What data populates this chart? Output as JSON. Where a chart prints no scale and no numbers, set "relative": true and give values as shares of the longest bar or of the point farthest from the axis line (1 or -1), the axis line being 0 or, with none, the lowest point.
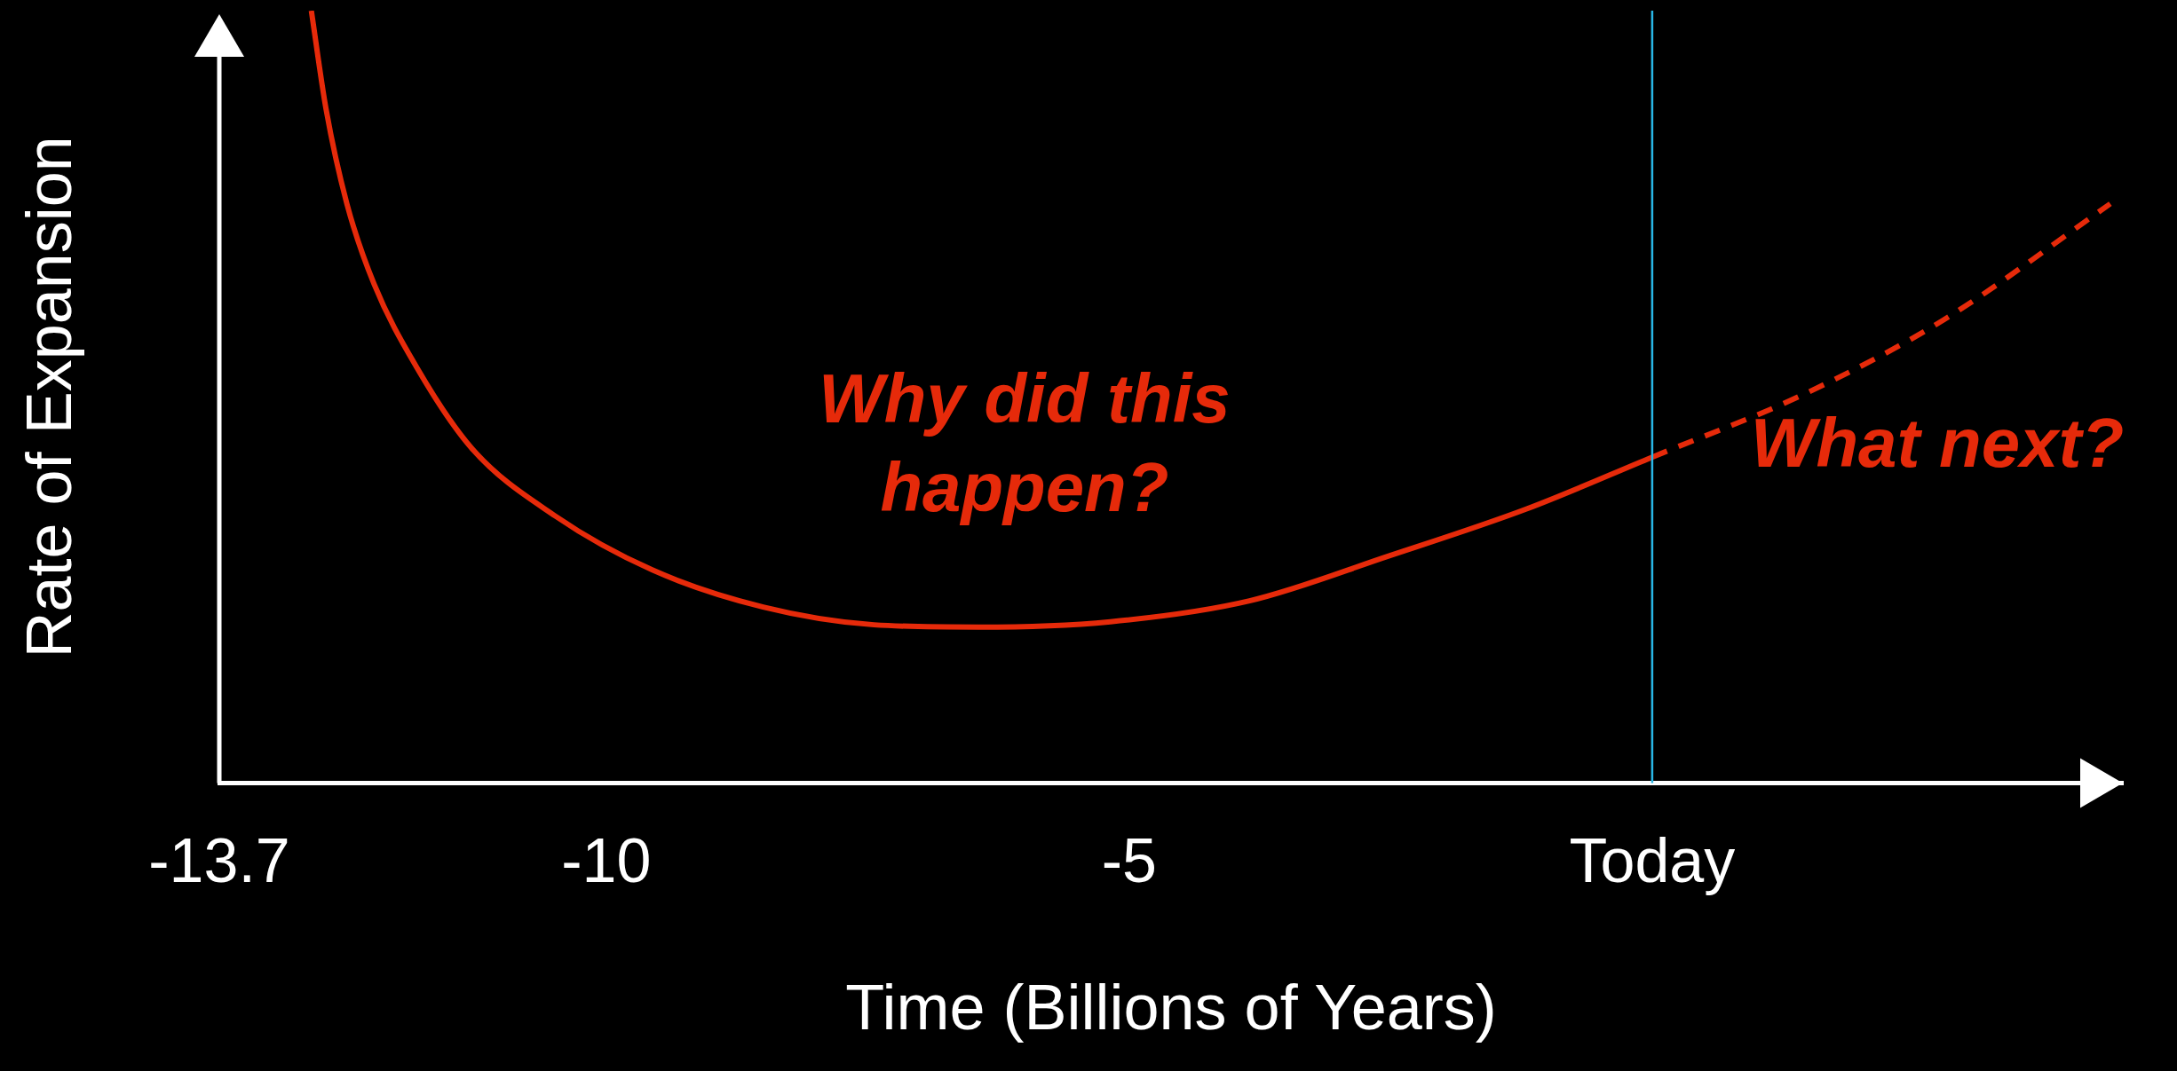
{
  "chart_data": {
    "type": "line",
    "relative": true,
    "xlabel": "Time (Billions of Years)",
    "ylabel": "Rate of Expansion",
    "xlim": [
      -13.7,
      4.5
    ],
    "xticks": [
      -13.7,
      -10,
      -5,
      {
        "value": 0,
        "label": "Today"
      }
    ],
    "grid": false,
    "legend": false,
    "marker": "none",
    "series": [
      {
        "color": "#e62a0a",
        "line_style": "solid",
        "x": [
          -12.82,
          -12.68,
          -12.48,
          -12.22,
          -11.82,
          -11.29,
          -10.49,
          -9.56,
          -8.5,
          -7.44,
          -6.44,
          -5.18,
          -3.85,
          -2.52,
          -1.2,
          0
        ],
        "values": [
          1.0,
          0.873,
          0.75,
          0.646,
          0.54,
          0.434,
          0.346,
          0.276,
          0.228,
          0.205,
          0.202,
          0.209,
          0.236,
          0.294,
          0.355,
          0.422
        ]
      },
      {
        "color": "#e62a0a",
        "line_style": "dashed",
        "x": [
          0,
          1.46,
          2.79,
          4.38
        ],
        "values": [
          0.422,
          0.504,
          0.6,
          0.75
        ]
      }
    ],
    "ref_lines": [
      {
        "axis": "x",
        "value": 0,
        "color": "#29b6e6"
      }
    ],
    "annotations": [
      "Why did this happen?",
      "What next?"
    ]
  }
}
